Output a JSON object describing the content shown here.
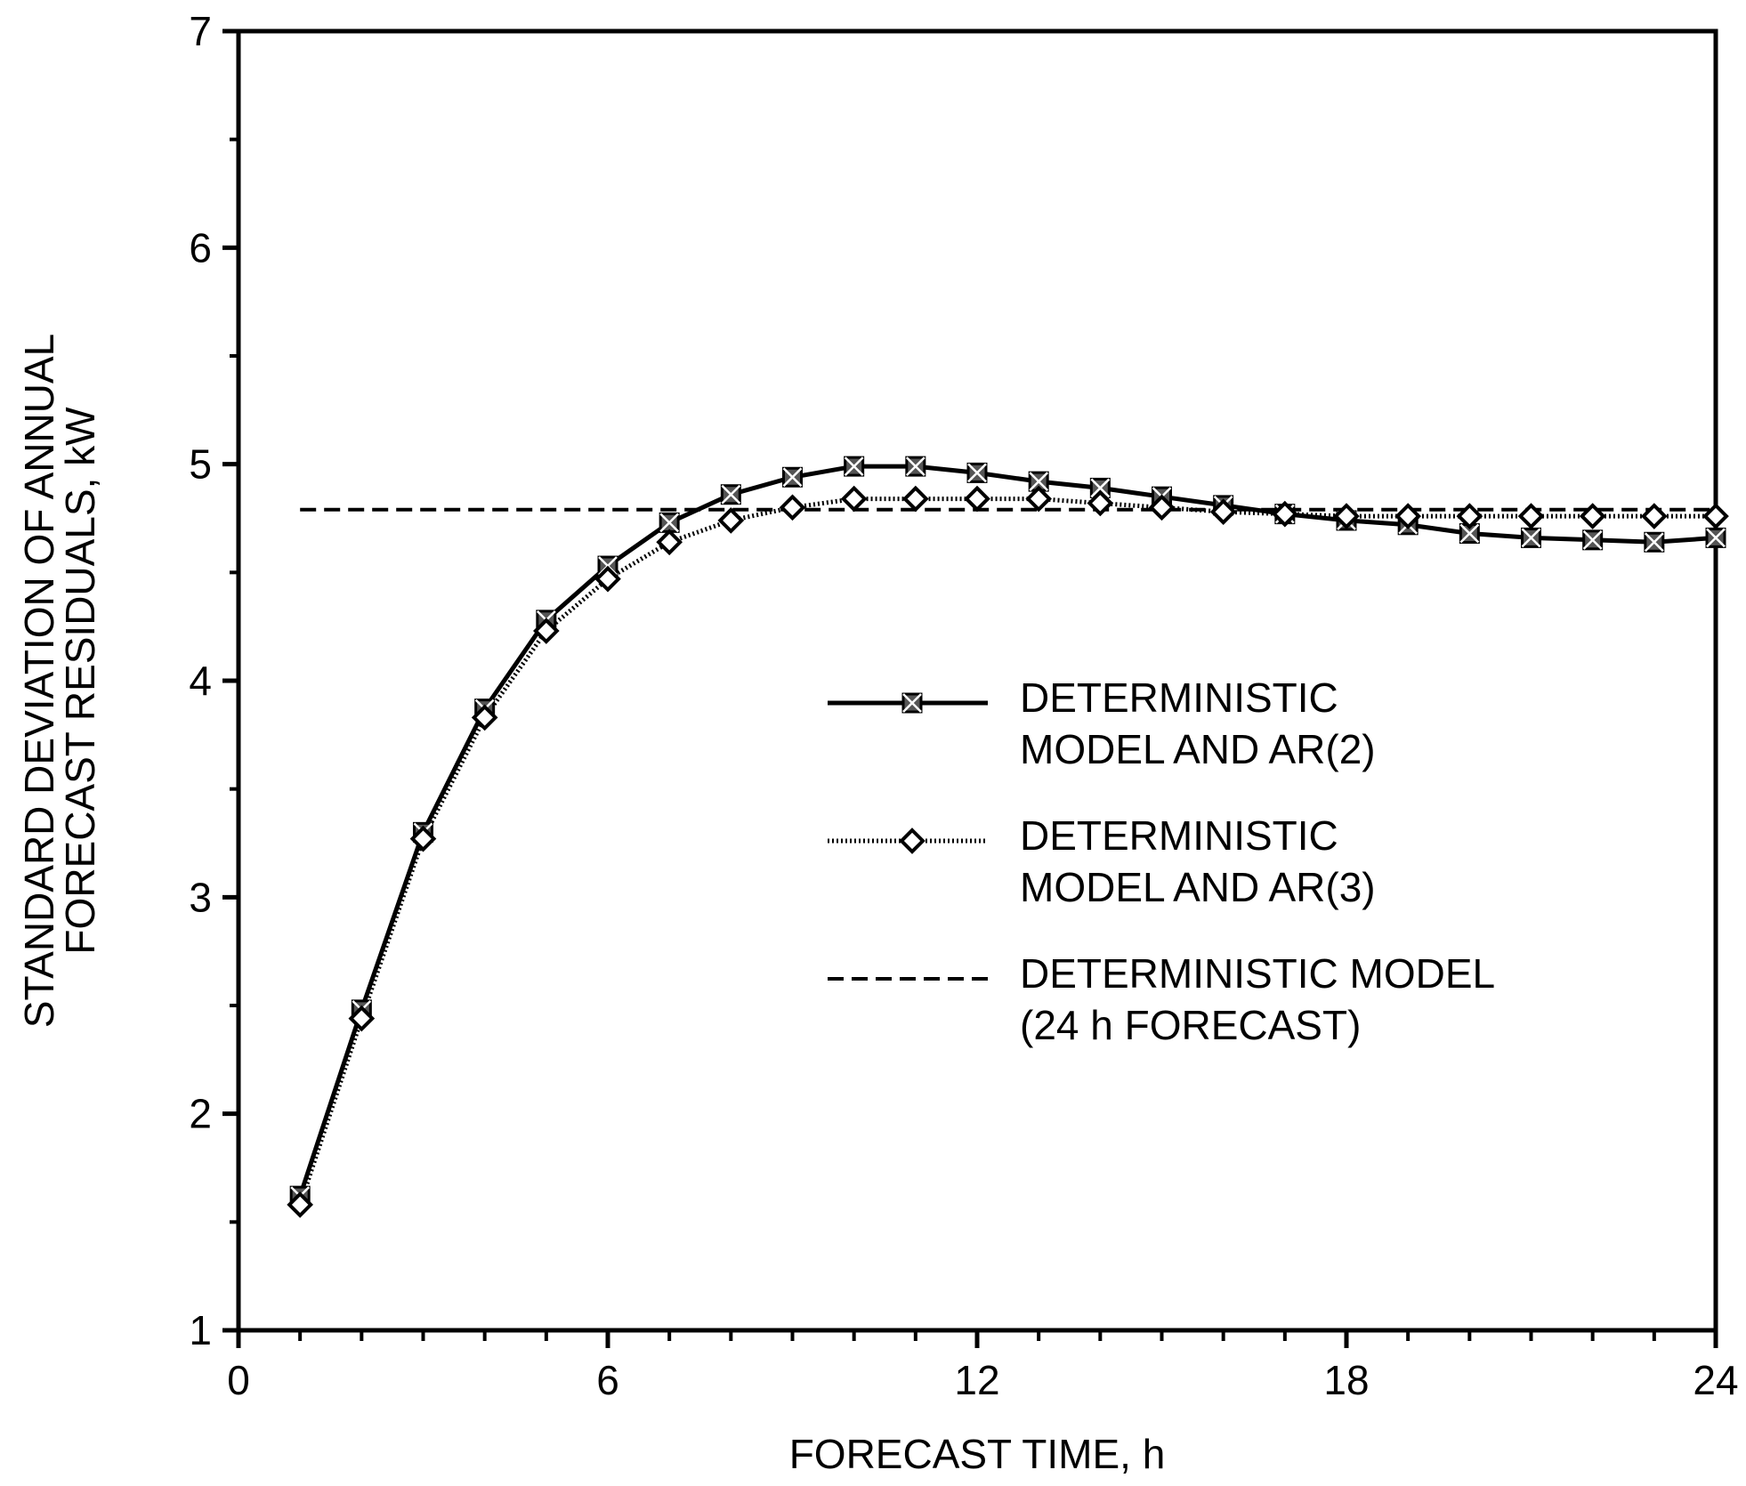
{
  "chart_data": {
    "type": "line",
    "title": "",
    "xlabel": "FORECAST TIME, h",
    "ylabel_lines": [
      "STANDARD DEVIATION OF ANNUAL",
      "FORECAST RESIDUALS, kW"
    ],
    "xlim": [
      0,
      24
    ],
    "ylim": [
      1,
      7
    ],
    "xticks": [
      0,
      6,
      12,
      18,
      24
    ],
    "yticks": [
      1,
      2,
      3,
      4,
      5,
      6,
      7
    ],
    "grid": false,
    "legend_position": "center-right",
    "x": [
      1,
      2,
      3,
      4,
      5,
      6,
      7,
      8,
      9,
      10,
      11,
      12,
      13,
      14,
      15,
      16,
      17,
      18,
      19,
      20,
      21,
      22,
      23,
      24
    ],
    "series": [
      {
        "legend_lines": [
          "DETERMINISTIC",
          "MODEL AND AR(2)"
        ],
        "style": "solid",
        "marker": "square-x",
        "values": [
          1.62,
          2.48,
          3.3,
          3.87,
          4.28,
          4.53,
          4.73,
          4.86,
          4.94,
          4.99,
          4.99,
          4.96,
          4.92,
          4.89,
          4.85,
          4.81,
          4.77,
          4.74,
          4.72,
          4.68,
          4.66,
          4.65,
          4.64,
          4.66
        ]
      },
      {
        "legend_lines": [
          "DETERMINISTIC",
          "MODEL AND AR(3)"
        ],
        "style": "dotted",
        "marker": "diamond",
        "values": [
          1.58,
          2.44,
          3.27,
          3.83,
          4.23,
          4.47,
          4.64,
          4.74,
          4.8,
          4.84,
          4.84,
          4.84,
          4.84,
          4.82,
          4.8,
          4.78,
          4.77,
          4.76,
          4.76,
          4.76,
          4.76,
          4.76,
          4.76,
          4.76
        ]
      },
      {
        "legend_lines": [
          "DETERMINISTIC MODEL",
          "(24 h FORECAST)"
        ],
        "style": "dashed",
        "marker": "none",
        "x": [
          1,
          24
        ],
        "values": [
          4.79,
          4.79
        ]
      }
    ]
  }
}
